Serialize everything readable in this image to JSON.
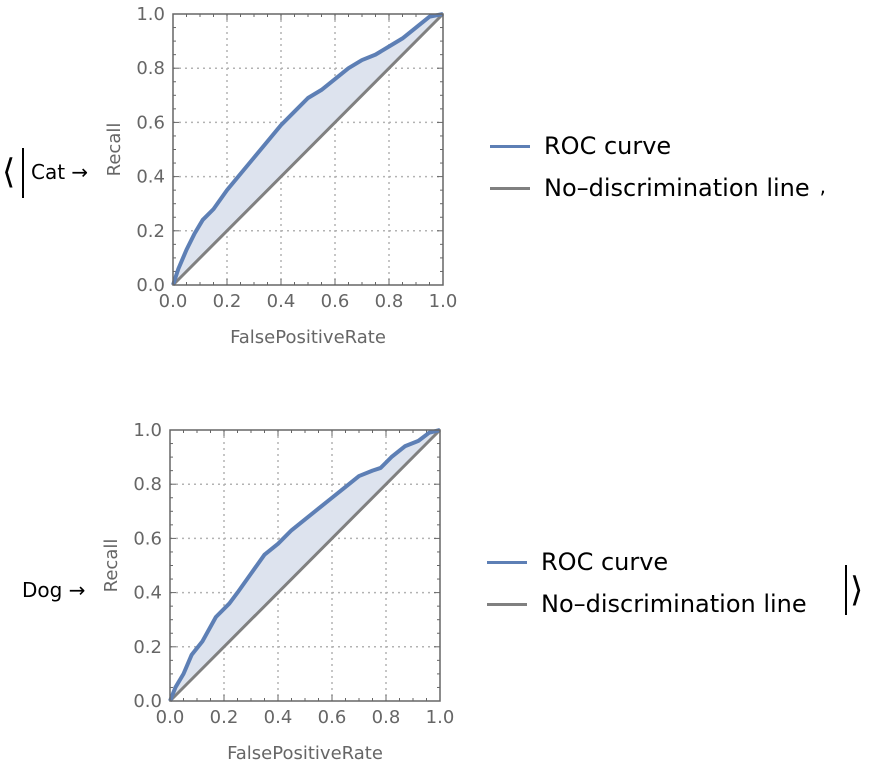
{
  "association": {
    "open": "⟨",
    "close": "⟩",
    "separator": ",",
    "arrow": "→"
  },
  "colors": {
    "roc": "#5d7fb5",
    "fill": "#dde3ee",
    "diag": "#808080",
    "frame": "#666666",
    "grid": "#b3b3b3"
  },
  "chart_data": [
    {
      "key": "Cat",
      "type": "line",
      "xlabel": "FalsePositiveRate",
      "ylabel": "Recall",
      "xlim": [
        0,
        1
      ],
      "ylim": [
        0,
        1
      ],
      "xticks": [
        "0.0",
        "0.2",
        "0.4",
        "0.6",
        "0.8",
        "1.0"
      ],
      "yticks": [
        "0.0",
        "0.2",
        "0.4",
        "0.6",
        "0.8",
        "1.0"
      ],
      "grid": true,
      "legend_placement": "right",
      "series": [
        {
          "name": "ROC curve",
          "x": [
            0,
            0.02,
            0.05,
            0.08,
            0.11,
            0.15,
            0.2,
            0.25,
            0.3,
            0.35,
            0.4,
            0.45,
            0.5,
            0.55,
            0.6,
            0.65,
            0.7,
            0.75,
            0.8,
            0.85,
            0.9,
            0.95,
            1
          ],
          "y": [
            0,
            0.06,
            0.13,
            0.19,
            0.24,
            0.28,
            0.35,
            0.41,
            0.47,
            0.53,
            0.59,
            0.64,
            0.69,
            0.72,
            0.76,
            0.8,
            0.83,
            0.85,
            0.88,
            0.91,
            0.95,
            0.99,
            1
          ]
        },
        {
          "name": "No–discrimination line",
          "x": [
            0,
            1
          ],
          "y": [
            0,
            1
          ]
        }
      ]
    },
    {
      "key": "Dog",
      "type": "line",
      "xlabel": "FalsePositiveRate",
      "ylabel": "Recall",
      "xlim": [
        0,
        1
      ],
      "ylim": [
        0,
        1
      ],
      "xticks": [
        "0.0",
        "0.2",
        "0.4",
        "0.6",
        "0.8",
        "1.0"
      ],
      "yticks": [
        "0.0",
        "0.2",
        "0.4",
        "0.6",
        "0.8",
        "1.0"
      ],
      "grid": true,
      "legend_placement": "right",
      "series": [
        {
          "name": "ROC curve",
          "x": [
            0,
            0.02,
            0.05,
            0.08,
            0.12,
            0.17,
            0.22,
            0.25,
            0.3,
            0.35,
            0.4,
            0.45,
            0.5,
            0.55,
            0.6,
            0.65,
            0.7,
            0.75,
            0.78,
            0.82,
            0.87,
            0.92,
            0.96,
            1
          ],
          "y": [
            0,
            0.05,
            0.1,
            0.17,
            0.22,
            0.31,
            0.36,
            0.4,
            0.47,
            0.54,
            0.58,
            0.63,
            0.67,
            0.71,
            0.75,
            0.79,
            0.83,
            0.85,
            0.86,
            0.9,
            0.94,
            0.96,
            0.99,
            1
          ]
        },
        {
          "name": "No–discrimination line",
          "x": [
            0,
            1
          ],
          "y": [
            0,
            1
          ]
        }
      ]
    }
  ]
}
